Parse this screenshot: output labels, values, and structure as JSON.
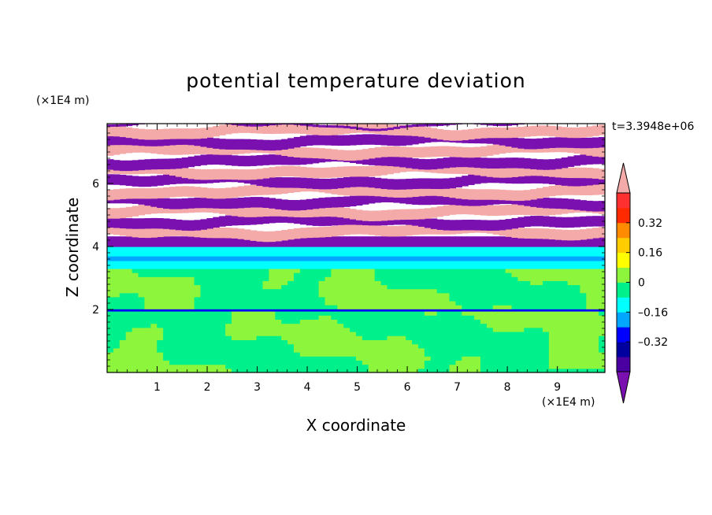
{
  "chart_data": {
    "type": "heatmap",
    "title": "potential temperature deviation",
    "xlabel": "X coordinate",
    "ylabel": "Z coordinate",
    "x_unit": "(×1E4 m)",
    "y_unit": "(×1E4 m)",
    "time_label": "t=3.3948e+06",
    "xlim": [
      0,
      9.95
    ],
    "ylim": [
      0,
      7.9
    ],
    "x_ticks": [
      1,
      2,
      3,
      4,
      5,
      6,
      7,
      8,
      9
    ],
    "y_ticks": [
      2,
      4,
      6
    ],
    "colorbar": {
      "range": [
        -0.48,
        0.48
      ],
      "tick_values": [
        0.32,
        0.16,
        0,
        -0.16,
        -0.32
      ],
      "tick_labels": [
        "0.32",
        "0.16",
        "0",
        "–0.16",
        "–0.32"
      ],
      "levels": [
        -0.48,
        -0.4,
        -0.32,
        -0.24,
        -0.16,
        -0.08,
        0,
        0.08,
        0.16,
        0.24,
        0.32,
        0.4,
        0.48
      ],
      "colors": [
        "#4a00a0",
        "#00009e",
        "#0000ff",
        "#00a6ff",
        "#00ffff",
        "#00f08c",
        "#8cf53c",
        "#ffff00",
        "#ffcc00",
        "#ff8c00",
        "#ff2a00",
        "#ff3030"
      ],
      "over_color": "#f5aaaa",
      "under_color": "#7a10b0"
    },
    "layers": [
      {
        "z": [
          0,
          1.95
        ],
        "pattern": "mixed",
        "values": [
          -0.04,
          0.04
        ]
      },
      {
        "z": [
          1.95,
          2.02
        ],
        "value": -0.3
      },
      {
        "z": [
          2.02,
          3.3
        ],
        "pattern": "mixed",
        "values": [
          -0.04,
          0.04
        ]
      },
      {
        "z": [
          3.3,
          3.55
        ],
        "value": -0.12
      },
      {
        "z": [
          3.55,
          3.7
        ],
        "value": -0.2
      },
      {
        "z": [
          3.7,
          4.0
        ],
        "value": -0.12
      },
      {
        "z": [
          4.0,
          7.9
        ],
        "pattern": "alternating",
        "values": [
          -0.6,
          0.6
        ]
      }
    ]
  }
}
